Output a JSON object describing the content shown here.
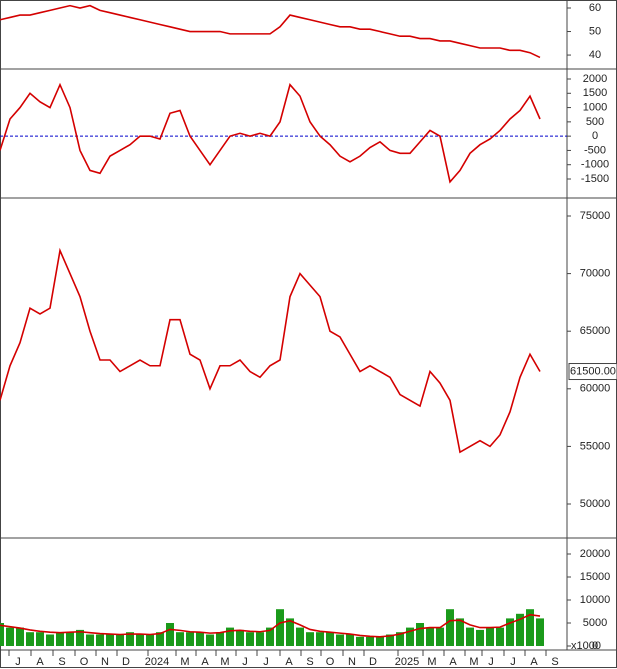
{
  "chart_data": [
    {
      "type": "line",
      "xlim": [
        0,
        56.7
      ],
      "ylim": [
        34.5,
        63.4
      ],
      "yticks": [
        40,
        50,
        60
      ],
      "x": [
        0,
        1,
        2,
        3,
        4,
        5,
        6,
        7,
        8,
        9,
        10,
        11,
        12,
        13,
        14,
        15,
        16,
        17,
        18,
        19,
        20,
        21,
        22,
        23,
        24,
        25,
        26,
        27,
        28,
        29,
        30,
        31,
        32,
        33,
        34,
        35,
        36,
        37,
        38,
        39,
        40,
        41,
        42,
        43,
        44,
        45,
        46,
        47,
        48,
        49,
        50,
        51,
        52,
        53,
        54
      ],
      "series": [
        {
          "color": "#d40000",
          "values": [
            55,
            56,
            57,
            57,
            58,
            59,
            60,
            61,
            60,
            61,
            59,
            58,
            57,
            56,
            55,
            54,
            53,
            52,
            51,
            50,
            50,
            50,
            50,
            49,
            49,
            49,
            49,
            49,
            52,
            57,
            56,
            55,
            54,
            53,
            52,
            52,
            51,
            51,
            50,
            49,
            48,
            48,
            47,
            47,
            46,
            46,
            45,
            44,
            43,
            43,
            43,
            42,
            42,
            41,
            39
          ]
        }
      ]
    },
    {
      "type": "line",
      "xlim": [
        0,
        56.7
      ],
      "ylim": [
        -2130,
        2315
      ],
      "yticks": [
        -1500,
        -1000,
        -500,
        0,
        500,
        1000,
        1500,
        2000
      ],
      "zero_line_color": "#0000cc",
      "x": [
        0,
        1,
        2,
        3,
        4,
        5,
        6,
        7,
        8,
        9,
        10,
        11,
        12,
        13,
        14,
        15,
        16,
        17,
        18,
        19,
        20,
        21,
        22,
        23,
        24,
        25,
        26,
        27,
        28,
        29,
        30,
        31,
        32,
        33,
        34,
        35,
        36,
        37,
        38,
        39,
        40,
        41,
        42,
        43,
        44,
        45,
        46,
        47,
        48,
        49,
        50,
        51,
        52,
        53,
        54
      ],
      "series": [
        {
          "color": "#d40000",
          "values": [
            -500,
            600,
            1000,
            1500,
            1200,
            1000,
            1800,
            1000,
            -500,
            -1200,
            -1300,
            -700,
            -500,
            -300,
            0,
            0,
            -100,
            800,
            900,
            0,
            -500,
            -1000,
            -500,
            0,
            100,
            0,
            100,
            0,
            500,
            1800,
            1400,
            500,
            0,
            -300,
            -700,
            -900,
            -700,
            -400,
            -200,
            -500,
            -600,
            -600,
            -200,
            200,
            0,
            -1600,
            -1200,
            -600,
            -300,
            -100,
            200,
            600,
            900,
            1400,
            600
          ]
        }
      ]
    },
    {
      "type": "line",
      "xlim": [
        0,
        56.7
      ],
      "ylim": [
        47135,
        76476
      ],
      "yticks": [
        50000,
        55000,
        60000,
        65000,
        70000,
        75000
      ],
      "last_label": {
        "value": 61500,
        "label": "61500.00"
      },
      "x": [
        0,
        1,
        2,
        3,
        4,
        5,
        6,
        7,
        8,
        9,
        10,
        11,
        12,
        13,
        14,
        15,
        16,
        17,
        18,
        19,
        20,
        21,
        22,
        23,
        24,
        25,
        26,
        27,
        28,
        29,
        30,
        31,
        32,
        33,
        34,
        35,
        36,
        37,
        38,
        39,
        40,
        41,
        42,
        43,
        44,
        45,
        46,
        47,
        48,
        49,
        50,
        51,
        52,
        53,
        54
      ],
      "series": [
        {
          "color": "#d40000",
          "values": [
            59000,
            62000,
            64000,
            67000,
            66500,
            67000,
            72000,
            70000,
            68000,
            65000,
            62500,
            62500,
            61500,
            62000,
            62500,
            62000,
            62000,
            66000,
            66000,
            63000,
            62500,
            60000,
            62000,
            62000,
            62500,
            61500,
            61000,
            62000,
            62500,
            68000,
            70000,
            69000,
            68000,
            65000,
            64500,
            63000,
            61500,
            62000,
            61500,
            61000,
            59500,
            59000,
            58500,
            61500,
            60500,
            59000,
            54500,
            55000,
            55500,
            55000,
            56000,
            58000,
            61000,
            63000,
            61500
          ]
        }
      ]
    },
    {
      "type": "bar",
      "xlim": [
        0,
        56.7
      ],
      "ylim": [
        0,
        23260
      ],
      "yticks": [
        0,
        5000,
        10000,
        15000,
        20000
      ],
      "unit_label": "x1000",
      "color": "#1a9a1a",
      "x": [
        0,
        1,
        2,
        3,
        4,
        5,
        6,
        7,
        8,
        9,
        10,
        11,
        12,
        13,
        14,
        15,
        16,
        17,
        18,
        19,
        20,
        21,
        22,
        23,
        24,
        25,
        26,
        27,
        28,
        29,
        30,
        31,
        32,
        33,
        34,
        35,
        36,
        37,
        38,
        39,
        40,
        41,
        42,
        43,
        44,
        45,
        46,
        47,
        48,
        49,
        50,
        51,
        52,
        53,
        54
      ],
      "values": [
        5000,
        4000,
        4000,
        3000,
        3000,
        2500,
        3000,
        3000,
        3500,
        2500,
        2500,
        2500,
        2500,
        3000,
        2500,
        2500,
        3000,
        5000,
        3000,
        3000,
        3000,
        2500,
        3000,
        4000,
        3500,
        3000,
        3000,
        4000,
        8000,
        6000,
        4000,
        3000,
        3000,
        3000,
        2500,
        2500,
        2000,
        2000,
        2000,
        2500,
        3000,
        4000,
        5000,
        4000,
        4000,
        8000,
        6000,
        4000,
        3500,
        4000,
        4000,
        6000,
        7000,
        8000,
        6000
      ],
      "series": [
        {
          "color": "#d40000",
          "values": [
            4500,
            4200,
            3900,
            3500,
            3200,
            3000,
            2900,
            3000,
            3100,
            2900,
            2700,
            2600,
            2500,
            2600,
            2600,
            2500,
            2700,
            3600,
            3400,
            3100,
            3000,
            2800,
            2900,
            3300,
            3400,
            3200,
            3100,
            3400,
            5000,
            5500,
            4600,
            3600,
            3200,
            3000,
            2800,
            2600,
            2300,
            2100,
            2000,
            2200,
            2600,
            3200,
            3800,
            4000,
            4000,
            5500,
            5600,
            4600,
            4000,
            4000,
            4100,
            5000,
            5800,
            6800,
            6500
          ]
        }
      ],
      "xticks": [
        {
          "value": 1.8,
          "label": "J"
        },
        {
          "value": 4.0,
          "label": "A"
        },
        {
          "value": 6.2,
          "label": "S"
        },
        {
          "value": 8.4,
          "label": "O"
        },
        {
          "value": 10.5,
          "label": "N"
        },
        {
          "value": 12.6,
          "label": "D"
        },
        {
          "value": 15.7,
          "label": "2024"
        },
        {
          "value": 18.5,
          "label": "M"
        },
        {
          "value": 20.5,
          "label": "A"
        },
        {
          "value": 22.5,
          "label": "M"
        },
        {
          "value": 24.5,
          "label": "J"
        },
        {
          "value": 26.6,
          "label": "J"
        },
        {
          "value": 28.9,
          "label": "A"
        },
        {
          "value": 31.0,
          "label": "S"
        },
        {
          "value": 33.0,
          "label": "O"
        },
        {
          "value": 35.2,
          "label": "N"
        },
        {
          "value": 37.3,
          "label": "D"
        },
        {
          "value": 40.7,
          "label": "2025"
        },
        {
          "value": 43.2,
          "label": "M"
        },
        {
          "value": 45.3,
          "label": "A"
        },
        {
          "value": 47.4,
          "label": "M"
        },
        {
          "value": 49.1,
          "label": "J"
        },
        {
          "value": 51.3,
          "label": "J"
        },
        {
          "value": 53.4,
          "label": "A"
        },
        {
          "value": 55.5,
          "label": "S"
        }
      ]
    }
  ]
}
